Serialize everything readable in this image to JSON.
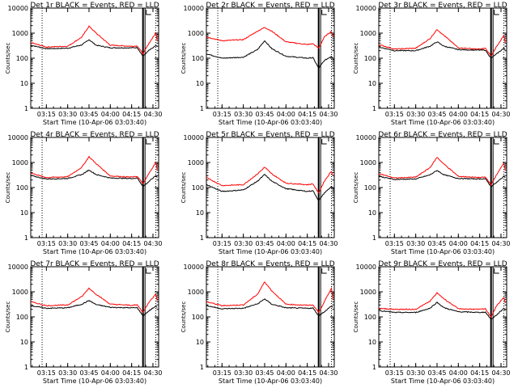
{
  "colors": {
    "events": "#000000",
    "lld": "#ff0000",
    "background": "#ffffff"
  },
  "shared": {
    "ylabel": "Counts/sec",
    "xlabel": "Start Time (10-Apr-06 03:03:40)",
    "x_ticks": [
      "03:15",
      "03:30",
      "03:45",
      "04:00",
      "04:15",
      "04:30"
    ],
    "y_ticks": [
      "1",
      "10",
      "100",
      "1000",
      "10000"
    ],
    "ylim": [
      1,
      10000
    ],
    "yscale": "log"
  },
  "chart_data": [
    {
      "type": "line",
      "title": "Det 1r BLACK = Events, RED = LLD",
      "x": [
        "03:04",
        "03:15",
        "03:30",
        "03:40",
        "03:45",
        "03:50",
        "04:00",
        "04:15",
        "04:19",
        "04:23",
        "04:27",
        "04:32",
        "04:33"
      ],
      "series": [
        {
          "name": "Events",
          "values": [
            330,
            240,
            250,
            340,
            550,
            330,
            260,
            260,
            265,
            120,
            200,
            310,
            290
          ]
        },
        {
          "name": "LLD",
          "values": [
            420,
            280,
            300,
            700,
            1900,
            1000,
            330,
            300,
            310,
            150,
            380,
            1000,
            500
          ]
        }
      ]
    },
    {
      "type": "line",
      "title": "Det 2r BLACK = Events, RED = LLD",
      "x": [
        "03:04",
        "03:15",
        "03:30",
        "03:40",
        "03:45",
        "03:50",
        "04:00",
        "04:15",
        "04:19",
        "04:23",
        "04:27",
        "04:32",
        "04:33"
      ],
      "series": [
        {
          "name": "Events",
          "values": [
            150,
            100,
            110,
            220,
            500,
            240,
            120,
            100,
            105,
            40,
            80,
            120,
            100
          ]
        },
        {
          "name": "LLD",
          "values": [
            700,
            500,
            550,
            1200,
            1700,
            1200,
            450,
            350,
            380,
            250,
            700,
            1200,
            700
          ]
        }
      ]
    },
    {
      "type": "line",
      "title": "Det 3r BLACK = Events, RED = LLD",
      "x": [
        "03:04",
        "03:15",
        "03:30",
        "03:40",
        "03:45",
        "03:50",
        "04:00",
        "04:15",
        "04:19",
        "04:23",
        "04:27",
        "04:32",
        "04:33"
      ],
      "series": [
        {
          "name": "Events",
          "values": [
            280,
            200,
            200,
            300,
            450,
            300,
            220,
            210,
            210,
            100,
            150,
            250,
            220
          ]
        },
        {
          "name": "LLD",
          "values": [
            350,
            230,
            250,
            600,
            1400,
            800,
            260,
            230,
            250,
            120,
            300,
            800,
            400
          ]
        }
      ]
    },
    {
      "type": "line",
      "title": "Det 4r BLACK = Events, RED = LLD",
      "x": [
        "03:04",
        "03:15",
        "03:30",
        "03:40",
        "03:45",
        "03:50",
        "04:00",
        "04:15",
        "04:19",
        "04:23",
        "04:27",
        "04:32",
        "04:33"
      ],
      "series": [
        {
          "name": "Events",
          "values": [
            300,
            220,
            230,
            330,
            500,
            330,
            240,
            230,
            240,
            110,
            170,
            300,
            260
          ]
        },
        {
          "name": "LLD",
          "values": [
            380,
            250,
            270,
            650,
            1700,
            900,
            290,
            260,
            280,
            140,
            350,
            1000,
            500
          ]
        }
      ]
    },
    {
      "type": "line",
      "title": "Det 5r BLACK = Events, RED = LLD",
      "x": [
        "03:04",
        "03:15",
        "03:30",
        "03:40",
        "03:45",
        "03:50",
        "04:00",
        "04:15",
        "04:19",
        "04:23",
        "04:27",
        "04:32",
        "04:33"
      ],
      "series": [
        {
          "name": "Events",
          "values": [
            130,
            70,
            80,
            180,
            330,
            180,
            90,
            70,
            75,
            30,
            60,
            110,
            90
          ]
        },
        {
          "name": "LLD",
          "values": [
            250,
            120,
            130,
            350,
            650,
            350,
            150,
            130,
            140,
            60,
            180,
            450,
            300
          ]
        }
      ]
    },
    {
      "type": "line",
      "title": "Det 6r BLACK = Events, RED = LLD",
      "x": [
        "03:04",
        "03:15",
        "03:30",
        "03:40",
        "03:45",
        "03:50",
        "04:00",
        "04:15",
        "04:19",
        "04:23",
        "04:27",
        "04:32",
        "04:33"
      ],
      "series": [
        {
          "name": "Events",
          "values": [
            280,
            210,
            220,
            320,
            480,
            320,
            230,
            220,
            225,
            110,
            160,
            280,
            250
          ]
        },
        {
          "name": "LLD",
          "values": [
            360,
            240,
            260,
            620,
            1600,
            850,
            280,
            250,
            260,
            130,
            330,
            950,
            480
          ]
        }
      ]
    },
    {
      "type": "line",
      "title": "Det 7r BLACK = Events, RED = LLD",
      "x": [
        "03:04",
        "03:15",
        "03:30",
        "03:40",
        "03:45",
        "03:50",
        "04:00",
        "04:15",
        "04:19",
        "04:23",
        "04:27",
        "04:32",
        "04:33"
      ],
      "series": [
        {
          "name": "Events",
          "values": [
            280,
            220,
            230,
            320,
            450,
            310,
            240,
            230,
            230,
            110,
            170,
            270,
            240
          ]
        },
        {
          "name": "LLD",
          "values": [
            400,
            280,
            300,
            650,
            1400,
            800,
            320,
            290,
            300,
            150,
            380,
            800,
            450
          ]
        }
      ]
    },
    {
      "type": "line",
      "title": "Det 8r BLACK = Events, RED = LLD",
      "x": [
        "03:04",
        "03:15",
        "03:30",
        "03:40",
        "03:45",
        "03:50",
        "04:00",
        "04:15",
        "04:19",
        "04:23",
        "04:27",
        "04:32",
        "04:33"
      ],
      "series": [
        {
          "name": "Events",
          "values": [
            280,
            210,
            220,
            330,
            520,
            320,
            230,
            220,
            225,
            110,
            160,
            270,
            240
          ]
        },
        {
          "name": "LLD",
          "values": [
            400,
            280,
            300,
            800,
            2500,
            1100,
            320,
            290,
            300,
            150,
            400,
            1400,
            500
          ]
        }
      ]
    },
    {
      "type": "line",
      "title": "Det 9r BLACK = Events, RED = LLD",
      "x": [
        "03:04",
        "03:15",
        "03:30",
        "03:40",
        "03:45",
        "03:50",
        "04:00",
        "04:15",
        "04:19",
        "04:23",
        "04:27",
        "04:32",
        "04:33"
      ],
      "series": [
        {
          "name": "Events",
          "values": [
            180,
            150,
            150,
            220,
            380,
            230,
            160,
            150,
            155,
            80,
            120,
            220,
            180
          ]
        },
        {
          "name": "LLD",
          "values": [
            220,
            200,
            200,
            420,
            900,
            520,
            210,
            200,
            210,
            100,
            280,
            600,
            350
          ]
        }
      ]
    }
  ]
}
